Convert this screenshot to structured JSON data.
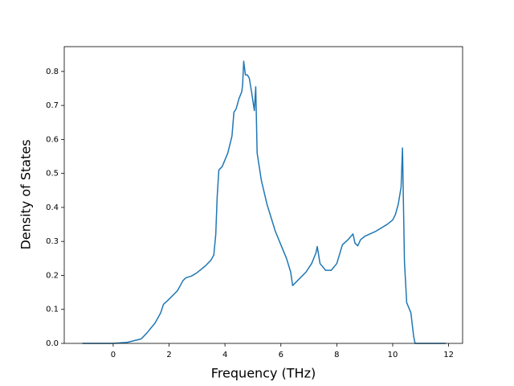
{
  "chart_data": {
    "type": "line",
    "xlabel": "Frequency (THz)",
    "ylabel": "Density of States",
    "x": [
      -1.1,
      0,
      0.5,
      1.0,
      1.2,
      1.5,
      1.7,
      1.8,
      2.0,
      2.3,
      2.5,
      2.6,
      2.8,
      3.0,
      3.3,
      3.5,
      3.6,
      3.67,
      3.72,
      3.78,
      3.9,
      4.1,
      4.25,
      4.32,
      4.4,
      4.5,
      4.6,
      4.63,
      4.67,
      4.73,
      4.8,
      4.87,
      4.95,
      5.05,
      5.1,
      5.15,
      5.3,
      5.5,
      5.8,
      6.0,
      6.2,
      6.35,
      6.42,
      6.6,
      6.9,
      7.1,
      7.25,
      7.3,
      7.4,
      7.6,
      7.8,
      8.0,
      8.2,
      8.4,
      8.58,
      8.65,
      8.75,
      8.85,
      9.0,
      9.4,
      9.8,
      10.0,
      10.1,
      10.2,
      10.3,
      10.35,
      10.42,
      10.5,
      10.65,
      10.75,
      10.8,
      11.9
    ],
    "series": [
      {
        "color": "#1f77b4",
        "values": [
          0,
          0,
          0.003,
          0.013,
          0.03,
          0.06,
          0.09,
          0.115,
          0.13,
          0.155,
          0.185,
          0.193,
          0.198,
          0.208,
          0.228,
          0.245,
          0.26,
          0.32,
          0.43,
          0.51,
          0.52,
          0.56,
          0.61,
          0.68,
          0.69,
          0.72,
          0.74,
          0.76,
          0.83,
          0.79,
          0.79,
          0.78,
          0.74,
          0.685,
          0.755,
          0.56,
          0.48,
          0.41,
          0.33,
          0.29,
          0.25,
          0.21,
          0.17,
          0.185,
          0.21,
          0.235,
          0.265,
          0.285,
          0.235,
          0.215,
          0.215,
          0.235,
          0.29,
          0.305,
          0.322,
          0.295,
          0.287,
          0.305,
          0.315,
          0.33,
          0.35,
          0.363,
          0.38,
          0.41,
          0.46,
          0.575,
          0.24,
          0.12,
          0.09,
          0.02,
          0,
          0
        ]
      }
    ],
    "xlim": [
      -1.75,
      12.5
    ],
    "ylim": [
      0,
      0.873
    ],
    "xticks": [
      0,
      2,
      4,
      6,
      8,
      10,
      12
    ],
    "yticks": [
      {
        "value": 0,
        "label": "0.0"
      },
      0.1,
      0.2,
      0.3,
      0.4,
      0.5,
      0.6,
      0.7,
      0.8
    ],
    "grid": false
  }
}
